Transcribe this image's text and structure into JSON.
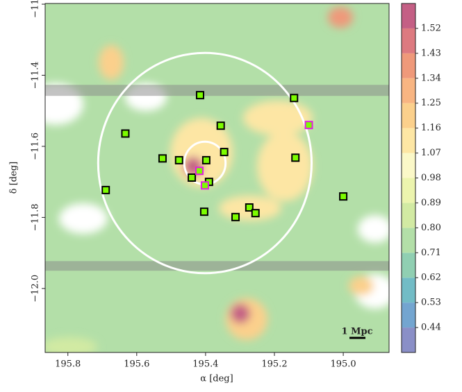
{
  "chart_data": {
    "type": "density-map",
    "x_label": "α [deg]",
    "y_label": "δ [deg]",
    "xlim": [
      195.866,
      194.867
    ],
    "ylim": [
      -12.18,
      -11.198
    ],
    "xticks": [
      195.8,
      195.6,
      195.4,
      195.2,
      {
        "value": 195,
        "label": "195.0"
      }
    ],
    "yticks": [
      {
        "value": -11.2,
        "label": "−11.2"
      },
      {
        "value": -11.4,
        "label": "−11.4"
      },
      {
        "value": -11.6,
        "label": "−11.6"
      },
      {
        "value": -11.8,
        "label": "−11.8"
      },
      {
        "value": -12,
        "label": "−12.0"
      }
    ],
    "colorbar": {
      "clim": [
        0.35,
        1.61
      ],
      "levels": [
        0.35,
        0.44,
        0.53,
        0.62,
        0.71,
        0.8,
        0.89,
        0.98,
        1.07,
        1.16,
        1.25,
        1.34,
        1.43,
        1.52,
        1.61
      ],
      "colors": [
        "#8a8fc7",
        "#73a5d0",
        "#72bcc6",
        "#90cfb2",
        "#b3dfa8",
        "#d2eaa3",
        "#ecf4ae",
        "#fbf8c8",
        "#fde6a4",
        "#fbd08c",
        "#f8b582",
        "#ef997a",
        "#dd7a80",
        "#c45f85"
      ],
      "ticks": [
        0.44,
        0.53,
        0.62,
        0.71,
        {
          "value": 0.8,
          "label": "0.80"
        },
        0.89,
        0.98,
        1.07,
        1.16,
        1.25,
        1.34,
        1.43,
        1.52
      ]
    },
    "masked_bands": [
      [
        -11.427,
        -11.458
      ],
      [
        -11.923,
        -11.95
      ]
    ],
    "circles": {
      "center": [
        195.402,
        -11.647
      ],
      "radii": [
        0.31,
        0.06
      ],
      "color": "#ffffff"
    },
    "series": [
      {
        "color": "#7cfc00",
        "edge": "#000000",
        "x": [
          195.416,
          195.143,
          195.633,
          195.356,
          195.525,
          195.477,
          195.346,
          195.398,
          195.139,
          195.44,
          195.39,
          195.69,
          195.0,
          195.273,
          195.255,
          195.404,
          195.313
        ],
        "y": [
          -11.456,
          -11.464,
          -11.564,
          -11.542,
          -11.634,
          -11.639,
          -11.616,
          -11.639,
          -11.632,
          -11.688,
          -11.7,
          -11.723,
          -11.741,
          -11.772,
          -11.788,
          -11.784,
          -11.799
        ]
      },
      {
        "color": "#7cfc00",
        "edge": "#e020e0",
        "x": [
          195.1,
          195.418,
          195.402
        ],
        "y": [
          -11.54,
          -11.669,
          -11.71
        ]
      }
    ],
    "scale_bar_label": "1 Mpc"
  }
}
